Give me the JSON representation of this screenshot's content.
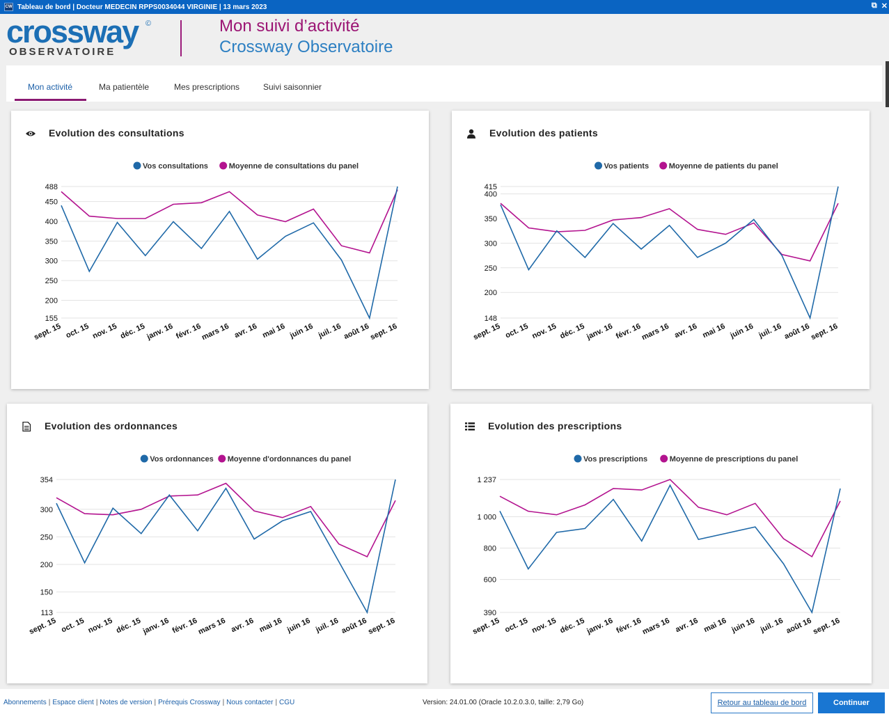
{
  "window": {
    "title": "Tableau de bord  |  Docteur MEDECIN RPPS0034044 VIRGINIE  |  13 mars 2023",
    "app_icon": "CW"
  },
  "header": {
    "logo_main": "crossway",
    "logo_copyright": "©",
    "logo_sub": "OBSERVATOIRE",
    "title_line1": "Mon suivi d’activité",
    "title_line2": "Crossway Observatoire"
  },
  "tabs": [
    {
      "label": "Mon activité",
      "active": true
    },
    {
      "label": "Ma patientèle",
      "active": false
    },
    {
      "label": "Mes prescriptions",
      "active": false
    },
    {
      "label": "Suivi saisonnier",
      "active": false
    }
  ],
  "colors": {
    "series_user": "#1f69a8",
    "series_panel": "#b3138f",
    "accent": "#8a1a72"
  },
  "cards": [
    {
      "title": "Evolution des consultations",
      "icon": "eye-icon"
    },
    {
      "title": "Evolution des patients",
      "icon": "user-icon"
    },
    {
      "title": "Evolution des ordonnances",
      "icon": "document-icon"
    },
    {
      "title": "Evolution des prescriptions",
      "icon": "list-icon"
    }
  ],
  "chart_data": [
    {
      "type": "line",
      "title": "Evolution des consultations",
      "x": [
        "sept. 15",
        "oct. 15",
        "nov. 15",
        "déc. 15",
        "janv. 16",
        "févr. 16",
        "mars 16",
        "avr. 16",
        "mai 16",
        "juin 16",
        "juil. 16",
        "août 16",
        "sept. 16"
      ],
      "series": [
        {
          "name": "Vos consultations",
          "values": [
            440,
            273,
            397,
            313,
            399,
            331,
            425,
            304,
            362,
            396,
            302,
            155,
            488
          ]
        },
        {
          "name": "Moyenne de consultations du panel",
          "values": [
            475,
            413,
            407,
            407,
            443,
            447,
            475,
            416,
            399,
            431,
            338,
            320,
            480
          ]
        }
      ],
      "yticks": [
        "155",
        "200",
        "250",
        "300",
        "350",
        "400",
        "450",
        "488"
      ],
      "ylim": [
        155,
        488
      ]
    },
    {
      "type": "line",
      "title": "Evolution des patients",
      "x": [
        "sept. 15",
        "oct. 15",
        "nov. 15",
        "déc. 15",
        "janv. 16",
        "févr. 16",
        "mars 16",
        "avr. 16",
        "mai 16",
        "juin 16",
        "juil. 16",
        "août 16",
        "sept. 16"
      ],
      "series": [
        {
          "name": "Vos patients",
          "values": [
            378,
            246,
            325,
            271,
            340,
            288,
            336,
            271,
            300,
            348,
            275,
            148,
            415
          ]
        },
        {
          "name": "Moyenne de patients du panel",
          "values": [
            381,
            331,
            323,
            326,
            347,
            352,
            370,
            328,
            318,
            341,
            277,
            264,
            381
          ]
        }
      ],
      "yticks": [
        "148",
        "200",
        "250",
        "300",
        "350",
        "400",
        "415"
      ],
      "ylim": [
        148,
        415
      ]
    },
    {
      "type": "line",
      "title": "Evolution des ordonnances",
      "x": [
        "sept. 15",
        "oct. 15",
        "nov. 15",
        "déc. 15",
        "janv. 16",
        "févr. 16",
        "mars 16",
        "avr. 16",
        "mai 16",
        "juin 16",
        "juil. 16",
        "août 16",
        "sept. 16"
      ],
      "series": [
        {
          "name": "Vos ordonnances",
          "values": [
            311,
            203,
            302,
            256,
            326,
            261,
            338,
            246,
            279,
            296,
            205,
            113,
            354
          ]
        },
        {
          "name": "Moyenne d'ordonnances du panel",
          "values": [
            321,
            292,
            290,
            300,
            324,
            326,
            347,
            297,
            285,
            305,
            237,
            214,
            316
          ]
        }
      ],
      "yticks": [
        "113",
        "150",
        "200",
        "250",
        "300",
        "354"
      ],
      "ylim": [
        113,
        354
      ]
    },
    {
      "type": "line",
      "title": "Evolution des prescriptions",
      "x": [
        "sept. 15",
        "oct. 15",
        "nov. 15",
        "déc. 15",
        "janv. 16",
        "févr. 16",
        "mars 16",
        "avr. 16",
        "mai 16",
        "juin 16",
        "juil. 16",
        "août 16",
        "sept. 16"
      ],
      "series": [
        {
          "name": "Vos prescriptions",
          "values": [
            1036,
            667,
            900,
            925,
            1110,
            845,
            1200,
            855,
            895,
            935,
            700,
            390,
            1180
          ]
        },
        {
          "name": "Moyenne de prescriptions du panel",
          "values": [
            1130,
            1035,
            1012,
            1075,
            1180,
            1170,
            1237,
            1060,
            1012,
            1085,
            860,
            745,
            1100
          ]
        }
      ],
      "yticks": [
        "390",
        "600",
        "800",
        "1 000",
        "1 237"
      ],
      "ytick_values": [
        390,
        600,
        800,
        1000,
        1237
      ],
      "ylim": [
        390,
        1237
      ]
    }
  ],
  "footer": {
    "links": [
      "Abonnements",
      "Espace client",
      "Notes de version",
      "Prérequis Crossway",
      "Nous contacter",
      "CGU"
    ],
    "version": "Version: 24.01.00 (Oracle 10.2.0.3.0, taille: 2,79 Go)",
    "back_label": "Retour au tableau de bord",
    "continue_label": "Continuer"
  }
}
